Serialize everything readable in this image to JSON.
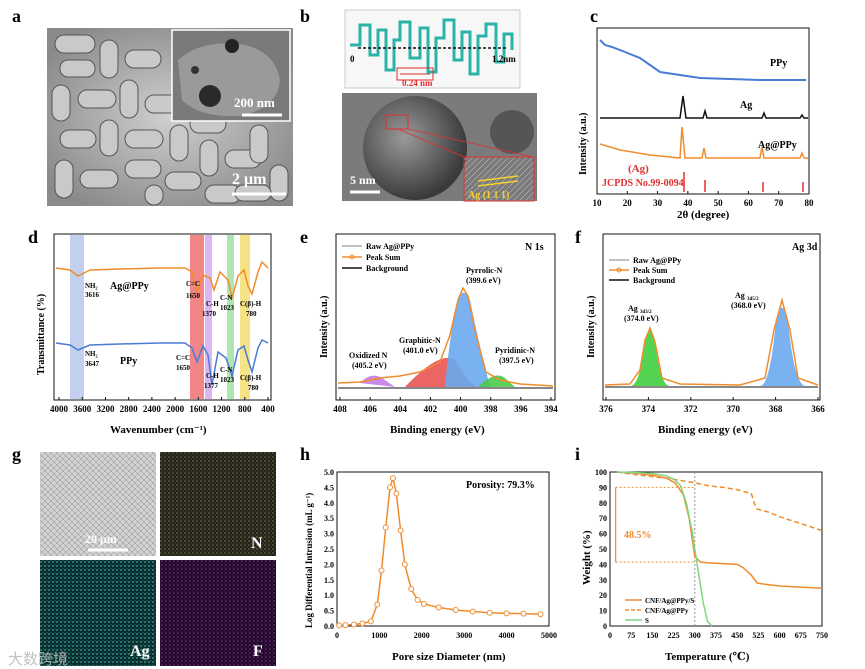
{
  "panels": {
    "a": {
      "letter": "a",
      "inset_scale": "200 nm",
      "main_scale": "2 μm"
    },
    "b": {
      "letter": "b",
      "profile_start": "0",
      "profile_end": "1.2nm",
      "spacing": "0.24 nm",
      "scale": "5 nm",
      "lattice": "Ag (1 1 1)"
    },
    "c": {
      "letter": "c",
      "ylabel": "Intensity (a.u.)",
      "xlabel": "2θ (degree)",
      "xticks": [
        "10",
        "20",
        "30",
        "40",
        "50",
        "60",
        "70",
        "80"
      ],
      "labels": {
        "ppy": "PPy",
        "ag": "Ag",
        "agppy": "Ag@PPy"
      },
      "ref_title": "(Ag)",
      "ref_name": "JCPDS No.99-0094"
    },
    "d": {
      "letter": "d",
      "ylabel": "Transmittance (%)",
      "xlabel": "Wavenumber (cm⁻¹)",
      "xticks": [
        "4000",
        "3600",
        "3200",
        "2800",
        "2400",
        "2000",
        "1600",
        "1200",
        "800",
        "400"
      ],
      "peaks_top": {
        "nh2": "NH₂",
        "nh2_val": "3616",
        "cc": "C=C",
        "cc_val": "1650",
        "ch": "C-H",
        "ch_val": "1370",
        "cn": "C-N",
        "cn_val": "1023",
        "cbh": "C(β)-H",
        "cbh_val": "780"
      },
      "peaks_bot": {
        "nh2": "NH₂",
        "nh2_val": "3647",
        "cc": "C=C",
        "cc_val": "1650",
        "ch": "C-H",
        "ch_val": "1377",
        "cn": "C-N",
        "cn_val": "1023",
        "cbh": "C(β)-H",
        "cbh_val": "780"
      },
      "label_top": "Ag@PPy",
      "label_bot": "PPy"
    },
    "e": {
      "letter": "e",
      "ylabel": "Intensity (a.u.)",
      "xlabel": "Binding energy (eV)",
      "xticks": [
        "408",
        "406",
        "404",
        "402",
        "400",
        "398",
        "396",
        "394"
      ],
      "title": "N 1s",
      "legend": [
        "Raw Ag@PPy",
        "Peak Sum",
        "Background"
      ],
      "pyrrolic": "Pyrrolic-N",
      "pyrrolic_val": "(399.6 eV)",
      "graphitic": "Graphitic-N",
      "graphitic_val": "(401.0 eV)",
      "oxidized": "Oxidized N",
      "oxidized_val": "(405.2 eV)",
      "pyridinic": "Pyridinic-N",
      "pyridinic_val": "(397.5 eV)"
    },
    "f": {
      "letter": "f",
      "ylabel": "Intensity (a.u.)",
      "xlabel": "Binding energy (eV)",
      "xticks": [
        "376",
        "374",
        "372",
        "370",
        "368",
        "366"
      ],
      "title": "Ag 3d",
      "legend": [
        "Raw Ag@PPy",
        "Peak Sum",
        "Background"
      ],
      "p1": "Ag",
      "p1_sub": "3d3/2",
      "p1_val": "(374.0 eV)",
      "p2": "Ag",
      "p2_sub": "3d5/2",
      "p2_val": "(368.0 eV)"
    },
    "g": {
      "letter": "g",
      "scale": "20 μm",
      "n": "N",
      "ag": "Ag",
      "f": "F"
    },
    "h": {
      "letter": "h",
      "ylabel": "Log Differential Intrusion (mL g⁻¹)",
      "xlabel": "Pore size Diameter (nm)",
      "porosity": "Porosity: 79.3%"
    },
    "i": {
      "letter": "i",
      "ylabel": "Weight (%)",
      "xlabel": "Temperature (℃)",
      "loss": "48.5%",
      "legend": [
        "CNF/Ag@PPy/S",
        "CNF/Ag@PPy",
        "S"
      ]
    }
  },
  "watermark": "大数跨境",
  "colors": {
    "orange": "#F08C2D",
    "blue": "#4A7BD6",
    "black": "#111111",
    "red": "#E03030",
    "green": "#4CC94C",
    "teal": "#3DBFB8"
  },
  "chart_data": [
    {
      "type": "line",
      "title": "XRD",
      "xlabel": "2θ (degree)",
      "ylabel": "Intensity (a.u.)",
      "xlim": [
        10,
        80
      ],
      "series": [
        {
          "name": "PPy"
        },
        {
          "name": "Ag",
          "peaks": [
            38.1,
            44.3,
            64.4,
            77.4
          ]
        },
        {
          "name": "Ag@PPy",
          "peaks": [
            38.1,
            44.3,
            64.4,
            77.4
          ]
        }
      ],
      "reference": {
        "name": "JCPDS No.99-0094",
        "positions": [
          38.1,
          44.3,
          64.4,
          77.4
        ]
      }
    },
    {
      "type": "line",
      "title": "N 1s",
      "xlim": [
        408,
        394
      ],
      "components": [
        {
          "name": "Pyrrolic-N",
          "x": 399.6
        },
        {
          "name": "Graphitic-N",
          "x": 401.0
        },
        {
          "name": "Oxidized N",
          "x": 405.2
        },
        {
          "name": "Pyridinic-N",
          "x": 397.5
        }
      ]
    },
    {
      "type": "line",
      "title": "Ag 3d",
      "xlim": [
        376,
        366
      ],
      "components": [
        {
          "name": "Ag 3d3/2",
          "x": 374.0
        },
        {
          "name": "Ag 3d5/2",
          "x": 368.0
        }
      ]
    },
    {
      "type": "line",
      "title": "Pore size",
      "xlabel": "Pore size Diameter (nm)",
      "ylabel": "Log Differential Intrusion (mL g⁻¹)",
      "xlim": [
        0,
        5000
      ],
      "ylim": [
        0,
        5.0
      ],
      "xticks": [
        0,
        1000,
        2000,
        3000,
        4000,
        5000
      ],
      "yticks": [
        0.0,
        0.5,
        1.0,
        1.5,
        2.0,
        2.5,
        3.0,
        3.5,
        4.0,
        4.5,
        5.0
      ],
      "x": [
        50,
        200,
        400,
        600,
        800,
        950,
        1050,
        1150,
        1250,
        1320,
        1400,
        1500,
        1600,
        1750,
        1900,
        2050,
        2400,
        2800,
        3200,
        3600,
        4000,
        4400,
        4800
      ],
      "y": [
        0.02,
        0.03,
        0.05,
        0.08,
        0.15,
        0.7,
        1.8,
        3.2,
        4.5,
        4.8,
        4.3,
        3.1,
        2.0,
        1.2,
        0.85,
        0.72,
        0.6,
        0.52,
        0.47,
        0.43,
        0.41,
        0.4,
        0.38
      ]
    },
    {
      "type": "line",
      "title": "TGA",
      "xlabel": "Temperature (℃)",
      "ylabel": "Weight (%)",
      "xlim": [
        0,
        750
      ],
      "ylim": [
        0,
        100
      ],
      "xticks": [
        0,
        75,
        150,
        225,
        300,
        375,
        450,
        525,
        600,
        675,
        750
      ],
      "yticks": [
        0,
        10,
        20,
        30,
        40,
        50,
        60,
        70,
        80,
        90,
        100
      ],
      "series": [
        {
          "name": "CNF/Ag@PPy/S",
          "x": [
            25,
            100,
            150,
            200,
            230,
            260,
            280,
            300,
            320,
            350,
            400,
            450,
            470,
            500,
            520,
            550,
            600,
            650,
            700,
            750
          ],
          "y": [
            100,
            99,
            98,
            96,
            93,
            85,
            70,
            45,
            41.5,
            41,
            40.5,
            40,
            38,
            33,
            28,
            27,
            26,
            25.5,
            25,
            24.5
          ]
        },
        {
          "name": "CNF/Ag@PPy",
          "x": [
            25,
            100,
            200,
            300,
            350,
            400,
            450,
            500,
            510,
            520,
            560,
            600,
            650,
            700,
            750
          ],
          "y": [
            100,
            98,
            96,
            93,
            91,
            90,
            88.5,
            86,
            80,
            76,
            74,
            71,
            68,
            65,
            62
          ]
        },
        {
          "name": "S",
          "x": [
            25,
            100,
            150,
            200,
            230,
            250,
            270,
            290,
            310,
            330,
            345,
            360
          ],
          "y": [
            100,
            99.5,
            99,
            97.5,
            95,
            91,
            80,
            62,
            38,
            15,
            3,
            0
          ]
        }
      ]
    }
  ]
}
